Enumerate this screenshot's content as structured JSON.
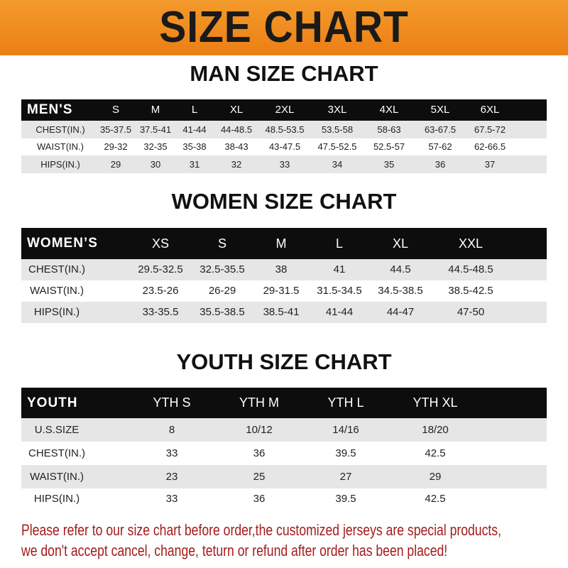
{
  "title": "SIZE CHART",
  "colors": {
    "banner": "#ef8a1e",
    "header_row": "#0d0d0d",
    "stripe": "#e6e6e6",
    "notice": "#a41c1c"
  },
  "men": {
    "title": "MAN SIZE CHART",
    "header_label": "MEN'S",
    "sizes": [
      "S",
      "M",
      "L",
      "XL",
      "2XL",
      "3XL",
      "4XL",
      "5XL",
      "6XL"
    ],
    "rows": [
      {
        "label": "CHEST(IN.)",
        "values": [
          "35-37.5",
          "37.5-41",
          "41-44",
          "44-48.5",
          "48.5-53.5",
          "53.5-58",
          "58-63",
          "63-67.5",
          "67.5-72"
        ]
      },
      {
        "label": "WAIST(IN.)",
        "values": [
          "29-32",
          "32-35",
          "35-38",
          "38-43",
          "43-47.5",
          "47.5-52.5",
          "52.5-57",
          "57-62",
          "62-66.5"
        ]
      },
      {
        "label": "HIPS(IN.)",
        "values": [
          "29",
          "30",
          "31",
          "32",
          "33",
          "34",
          "35",
          "36",
          "37"
        ]
      }
    ]
  },
  "women": {
    "title": "WOMEN SIZE CHART",
    "header_label": "WOMEN’S",
    "sizes": [
      "XS",
      "S",
      "M",
      "L",
      "XL",
      "XXL"
    ],
    "rows": [
      {
        "label": "CHEST(IN.)",
        "values": [
          "29.5-32.5",
          "32.5-35.5",
          "38",
          "41",
          "44.5",
          "44.5-48.5"
        ]
      },
      {
        "label": "WAIST(IN.)",
        "values": [
          "23.5-26",
          "26-29",
          "29-31.5",
          "31.5-34.5",
          "34.5-38.5",
          "38.5-42.5"
        ]
      },
      {
        "label": "HIPS(IN.)",
        "values": [
          "33-35.5",
          "35.5-38.5",
          "38.5-41",
          "41-44",
          "44-47",
          "47-50"
        ]
      }
    ]
  },
  "youth": {
    "title": "YOUTH SIZE CHART",
    "header_label": "YOUTH",
    "sizes": [
      "YTH S",
      "YTH M",
      "YTH L",
      "YTH XL"
    ],
    "rows": [
      {
        "label": "U.S.SIZE",
        "values": [
          "8",
          "10/12",
          "14/16",
          "18/20"
        ]
      },
      {
        "label": "CHEST(IN.)",
        "values": [
          "33",
          "36",
          "39.5",
          "42.5"
        ]
      },
      {
        "label": "WAIST(IN.)",
        "values": [
          "23",
          "25",
          "27",
          "29"
        ]
      },
      {
        "label": "HIPS(IN.)",
        "values": [
          "33",
          "36",
          "39.5",
          "42.5"
        ]
      }
    ]
  },
  "notice": {
    "line1": "Please refer to our size chart before order,the customized jerseys are special products,",
    "line2": "we don't accept cancel, change, teturn or refund after order has been placed!"
  }
}
